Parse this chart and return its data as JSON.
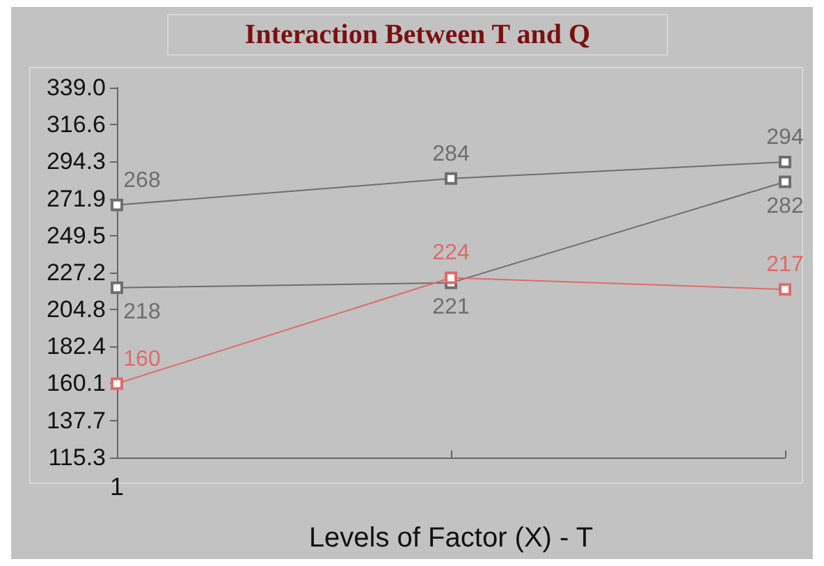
{
  "chart_data": {
    "type": "line",
    "title": "Interaction Between T and Q",
    "xlabel": "Levels of Factor (X) - T",
    "categories": [
      "1",
      null,
      null
    ],
    "series": [
      {
        "color": "#6e6e6e",
        "values": [
          268,
          284,
          294
        ]
      },
      {
        "color": "#6e6e6e",
        "values": [
          218,
          221,
          282
        ]
      },
      {
        "color": "#e06a6a",
        "values": [
          160,
          224,
          217
        ]
      }
    ],
    "ylim": [
      115.3,
      339.0
    ],
    "yticks": [
      115.3,
      137.7,
      160.1,
      182.4,
      204.8,
      227.2,
      249.5,
      271.9,
      294.3,
      316.6,
      {
        "value": 339.0,
        "label": "339.0"
      }
    ],
    "data_labels": true,
    "grid": false,
    "marker": "square",
    "line_style": "solid"
  }
}
